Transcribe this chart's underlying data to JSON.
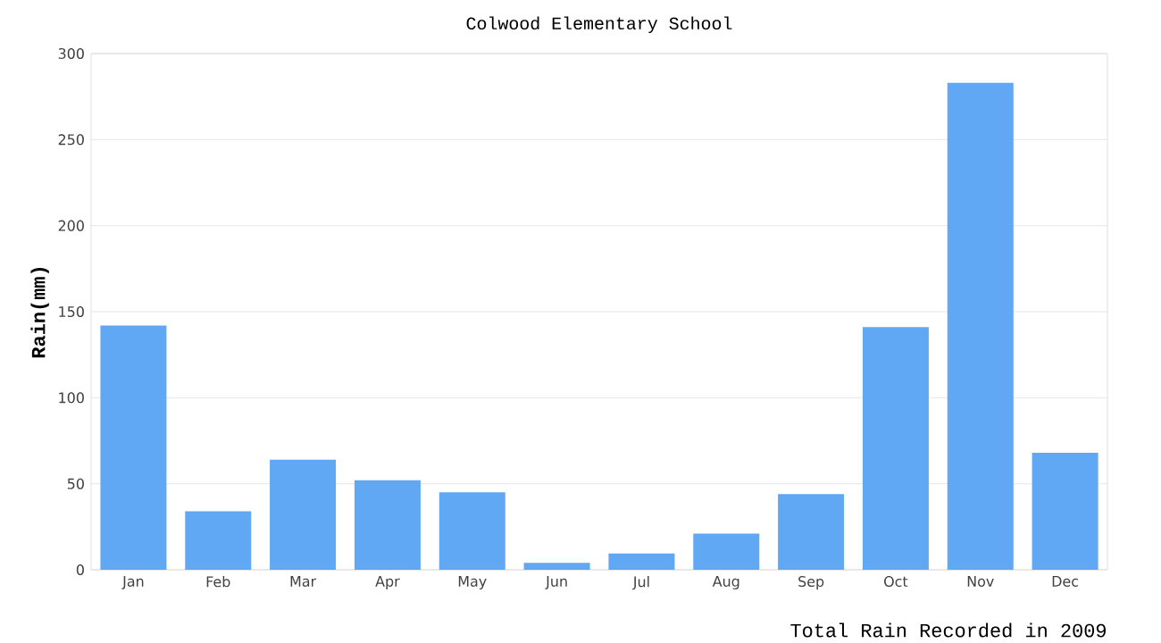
{
  "chart_data": {
    "type": "bar",
    "title": "Colwood Elementary School",
    "ylabel": "Rain(mm)",
    "annotations": [
      "Total Rain Recorded in 2009"
    ],
    "categories": [
      "Jan",
      "Feb",
      "Mar",
      "Apr",
      "May",
      "Jun",
      "Jul",
      "Aug",
      "Sep",
      "Oct",
      "Nov",
      "Dec"
    ],
    "values": [
      142,
      34,
      64,
      52,
      45,
      4,
      9.5,
      21,
      44,
      141,
      283,
      68
    ],
    "color": "#60a8f4",
    "ylim": [
      0,
      300
    ],
    "yticks": [
      0,
      50,
      100,
      150,
      200,
      250,
      300
    ],
    "grid": "y"
  }
}
